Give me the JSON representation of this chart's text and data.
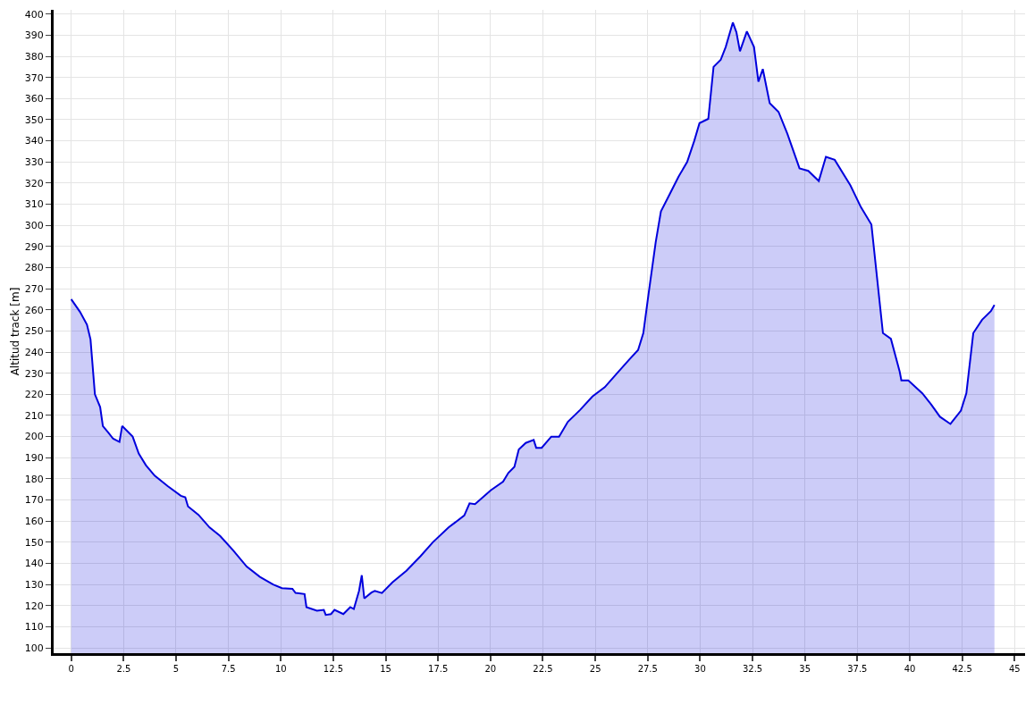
{
  "chart_data": {
    "type": "area",
    "ylabel": "Altitud track [m]",
    "x": [
      0,
      0.42,
      0.75,
      0.92,
      1.13,
      1.38,
      1.51,
      1.76,
      2.0,
      2.3,
      2.43,
      2.93,
      3.22,
      3.56,
      3.98,
      4.6,
      5.23,
      5.44,
      5.57,
      6.07,
      6.6,
      7.1,
      7.74,
      8.37,
      9.0,
      9.63,
      10.05,
      10.55,
      10.7,
      11.13,
      11.22,
      11.72,
      12.05,
      12.14,
      12.39,
      12.56,
      12.98,
      13.31,
      13.48,
      13.73,
      13.86,
      13.98,
      14.32,
      14.48,
      14.82,
      15.32,
      15.99,
      16.66,
      17.25,
      18.0,
      18.75,
      19.0,
      19.26,
      20.01,
      20.6,
      20.85,
      21.14,
      21.35,
      21.68,
      22.06,
      22.18,
      22.44,
      22.9,
      23.27,
      23.69,
      24.28,
      24.86,
      25.45,
      26.04,
      26.62,
      27.04,
      27.29,
      27.54,
      27.88,
      28.13,
      28.55,
      28.97,
      29.38,
      29.72,
      29.97,
      30.39,
      30.64,
      30.98,
      31.22,
      31.56,
      31.73,
      31.9,
      32.23,
      32.57,
      32.78,
      32.99,
      33.32,
      33.74,
      34.16,
      34.74,
      35.16,
      35.66,
      36.0,
      36.42,
      37.17,
      37.67,
      38.17,
      38.72,
      39.1,
      39.52,
      39.6,
      39.93,
      40.6,
      41.02,
      41.44,
      41.94,
      42.44,
      42.7,
      43.03,
      43.45,
      43.87,
      44.04
    ],
    "series": [
      {
        "color": "#0000dd",
        "values": [
          265,
          259,
          253,
          246,
          220,
          214,
          205,
          202,
          199,
          197.5,
          205,
          200,
          192,
          186.5,
          181.5,
          176.6,
          172,
          171.3,
          167,
          163,
          157,
          153,
          146,
          138.5,
          133.6,
          130,
          128.3,
          128,
          126,
          125.5,
          119.3,
          117.6,
          118,
          115.6,
          116,
          118,
          116,
          119.3,
          118.4,
          127,
          134.4,
          123.4,
          126.2,
          127,
          126,
          131,
          136.5,
          143.4,
          150,
          157,
          162.7,
          168.4,
          168,
          174.6,
          178.7,
          182.8,
          185.7,
          193.9,
          197,
          198.4,
          194.7,
          194.7,
          200,
          200,
          207,
          212.7,
          219,
          223.4,
          230,
          236.5,
          241,
          249,
          267.6,
          292,
          306.6,
          314.8,
          323,
          330,
          340,
          348.4,
          350.4,
          375,
          378.3,
          384.4,
          396,
          391.4,
          382.4,
          391.8,
          384.4,
          368,
          374,
          357.8,
          353.7,
          343.4,
          327,
          325.8,
          321,
          332.4,
          331,
          318.9,
          308.6,
          300.4,
          249,
          246.3,
          230.7,
          226.6,
          226.6,
          220.5,
          215.2,
          209.4,
          206,
          212.3,
          220.5,
          249,
          255.3,
          259.4,
          262.3
        ]
      }
    ],
    "xlim": [
      -0.84,
      45.5
    ],
    "xticks": [
      0,
      2.5,
      5,
      7.5,
      10,
      12.5,
      15,
      17.5,
      20,
      22.5,
      25,
      27.5,
      30,
      32.5,
      35,
      37.5,
      40,
      42.5,
      45
    ],
    "ylim": [
      97.5,
      402
    ],
    "yticks": [
      100,
      110,
      120,
      130,
      140,
      150,
      160,
      170,
      180,
      190,
      200,
      210,
      220,
      230,
      240,
      250,
      260,
      270,
      280,
      290,
      300,
      310,
      320,
      330,
      340,
      350,
      360,
      370,
      380,
      390,
      400
    ],
    "grid": true
  }
}
